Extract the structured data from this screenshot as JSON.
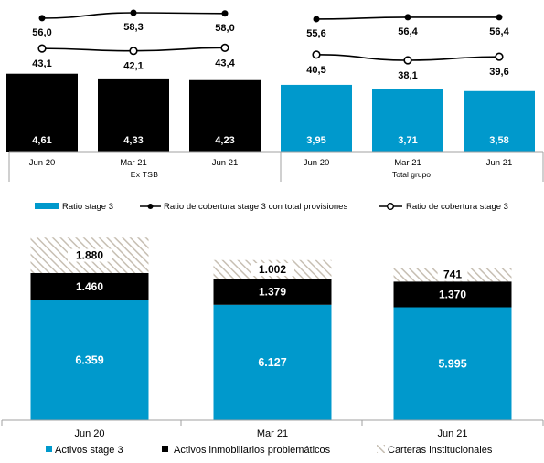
{
  "colors": {
    "blue": "#0099cc",
    "black": "#000000",
    "hatch": "#c7bfb3",
    "axis": "#a0a0a0"
  },
  "chart_data": [
    {
      "type": "bar",
      "groups": [
        {
          "label": "Ex TSB",
          "categories": [
            "Jun 20",
            "Mar 21",
            "Jun 21"
          ]
        },
        {
          "label": "Total grupo",
          "categories": [
            "Jun 20",
            "Mar 21",
            "Jun 21"
          ]
        }
      ],
      "series": [
        {
          "name": "Ratio stage 3",
          "kind": "bar",
          "values": [
            "4,61",
            "4,33",
            "4,23",
            "3,95",
            "3,71",
            "3,58"
          ],
          "numeric": [
            4.61,
            4.33,
            4.23,
            3.95,
            3.71,
            3.58
          ]
        },
        {
          "name": "Ratio de cobertura stage 3 con total provisiones",
          "kind": "line",
          "marker": "filled",
          "values": [
            "56,0",
            "58,3",
            "58,0",
            "55,6",
            "56,4",
            "56,4"
          ],
          "numeric": [
            56.0,
            58.3,
            58.0,
            55.6,
            56.4,
            56.4
          ]
        },
        {
          "name": "Ratio de cobertura stage 3",
          "kind": "line",
          "marker": "hollow",
          "values": [
            "43,1",
            "42,1",
            "43,4",
            "40,5",
            "38,1",
            "39,6"
          ],
          "numeric": [
            43.1,
            42.1,
            43.4,
            40.5,
            38.1,
            39.6
          ]
        }
      ],
      "legend_position": "bottom"
    },
    {
      "type": "bar",
      "stacked": true,
      "categories": [
        "Jun 20",
        "Mar 21",
        "Jun 21"
      ],
      "series": [
        {
          "name": "Activos stage 3",
          "values": [
            "6.359",
            "6.127",
            "5.995"
          ],
          "numeric": [
            6359,
            6127,
            5995
          ]
        },
        {
          "name": "Activos inmobiliarios problemáticos",
          "values": [
            "1.460",
            "1.379",
            "1.370"
          ],
          "numeric": [
            1460,
            1379,
            1370
          ]
        },
        {
          "name": "Carteras institucionales",
          "values": [
            "1.880",
            "1.002",
            "741"
          ],
          "numeric": [
            1880,
            1002,
            741
          ]
        }
      ],
      "legend_position": "bottom"
    }
  ]
}
